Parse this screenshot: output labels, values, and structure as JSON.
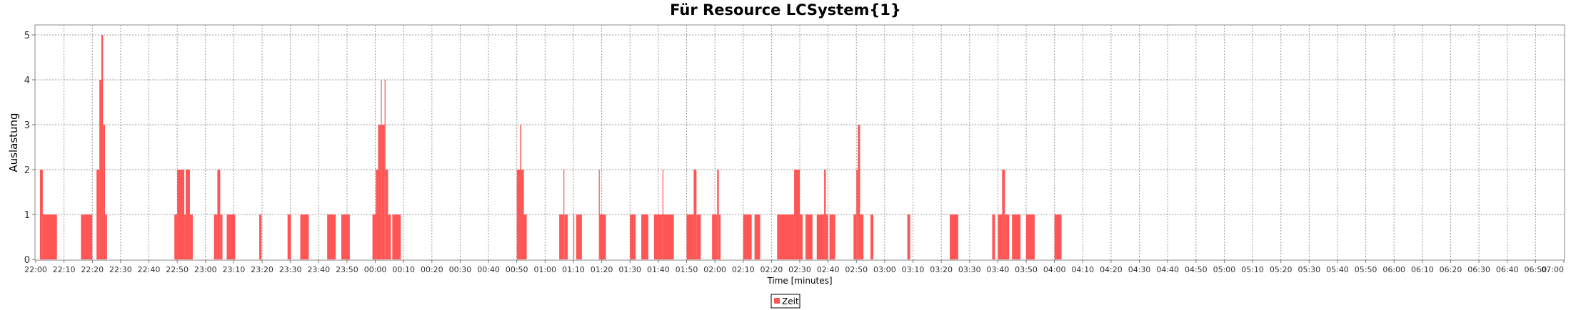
{
  "chart_data": {
    "type": "bar",
    "title": "Für Resource LCSystem{1}",
    "xlabel": "Time [minutes]",
    "ylabel": "Auslastung",
    "xlim_minutes": [
      0,
      540
    ],
    "ylim": [
      0,
      5.2
    ],
    "yticks": [
      0,
      1,
      2,
      3,
      4,
      5
    ],
    "xticks": [
      "22:00",
      "22:10",
      "22:20",
      "22:30",
      "22:40",
      "22:50",
      "23:00",
      "23:10",
      "23:20",
      "23:30",
      "23:40",
      "23:50",
      "00:00",
      "00:10",
      "00:20",
      "00:30",
      "00:40",
      "00:50",
      "01:00",
      "01:10",
      "01:20",
      "01:30",
      "01:40",
      "01:50",
      "02:00",
      "02:10",
      "02:20",
      "02:30",
      "02:40",
      "02:50",
      "03:00",
      "03:10",
      "03:20",
      "03:30",
      "03:40",
      "03:50",
      "04:00",
      "04:10",
      "04:20",
      "04:30",
      "04:40",
      "04:50",
      "05:00",
      "05:10",
      "05:20",
      "05:30",
      "05:40",
      "05:50",
      "06:00",
      "06:10",
      "06:20",
      "06:30",
      "06:40",
      "06:50",
      "07:00"
    ],
    "grid": true,
    "legend_position": "bottom",
    "series": [
      {
        "name": "Zeit",
        "color": "#ff5555",
        "bars": [
          {
            "start": 1.5,
            "end": 2.5,
            "value": 2
          },
          {
            "start": 2.5,
            "end": 7.5,
            "value": 1
          },
          {
            "start": 16,
            "end": 20,
            "value": 1
          },
          {
            "start": 21.5,
            "end": 22.5,
            "value": 2
          },
          {
            "start": 22.5,
            "end": 23.2,
            "value": 4
          },
          {
            "start": 23.2,
            "end": 23.8,
            "value": 5
          },
          {
            "start": 23.8,
            "end": 24.5,
            "value": 3
          },
          {
            "start": 24.5,
            "end": 25.2,
            "value": 1
          },
          {
            "start": 49,
            "end": 50,
            "value": 1
          },
          {
            "start": 50,
            "end": 52.5,
            "value": 2
          },
          {
            "start": 52.5,
            "end": 53,
            "value": 1
          },
          {
            "start": 53,
            "end": 54.5,
            "value": 2
          },
          {
            "start": 54.5,
            "end": 55.5,
            "value": 1
          },
          {
            "start": 63,
            "end": 64.2,
            "value": 1
          },
          {
            "start": 64.2,
            "end": 65.2,
            "value": 2
          },
          {
            "start": 65.2,
            "end": 66,
            "value": 1
          },
          {
            "start": 67.5,
            "end": 70.5,
            "value": 1
          },
          {
            "start": 79,
            "end": 79.8,
            "value": 1
          },
          {
            "start": 89,
            "end": 90.2,
            "value": 1
          },
          {
            "start": 93.5,
            "end": 96.5,
            "value": 1
          },
          {
            "start": 103,
            "end": 106,
            "value": 1
          },
          {
            "start": 108,
            "end": 111,
            "value": 1
          },
          {
            "start": 119,
            "end": 120.2,
            "value": 1
          },
          {
            "start": 120.2,
            "end": 121,
            "value": 2
          },
          {
            "start": 121,
            "end": 122,
            "value": 3
          },
          {
            "start": 122,
            "end": 122.3,
            "value": 4
          },
          {
            "start": 122.3,
            "end": 123.3,
            "value": 3
          },
          {
            "start": 123.3,
            "end": 123.6,
            "value": 4
          },
          {
            "start": 123.6,
            "end": 124.5,
            "value": 2
          },
          {
            "start": 124.5,
            "end": 125.5,
            "value": 1
          },
          {
            "start": 126,
            "end": 129,
            "value": 1
          },
          {
            "start": 170,
            "end": 171.2,
            "value": 2
          },
          {
            "start": 171.2,
            "end": 171.6,
            "value": 3
          },
          {
            "start": 171.6,
            "end": 172.5,
            "value": 2
          },
          {
            "start": 172.5,
            "end": 173.5,
            "value": 1
          },
          {
            "start": 185,
            "end": 186.5,
            "value": 1
          },
          {
            "start": 186.5,
            "end": 186.8,
            "value": 2
          },
          {
            "start": 186.8,
            "end": 188,
            "value": 1
          },
          {
            "start": 190,
            "end": 190.3,
            "value": 1
          },
          {
            "start": 191,
            "end": 193,
            "value": 1
          },
          {
            "start": 199,
            "end": 199.3,
            "value": 2
          },
          {
            "start": 199.3,
            "end": 201.5,
            "value": 1
          },
          {
            "start": 210,
            "end": 212,
            "value": 1
          },
          {
            "start": 214,
            "end": 216.5,
            "value": 1
          },
          {
            "start": 218.5,
            "end": 221.5,
            "value": 1
          },
          {
            "start": 221.5,
            "end": 221.8,
            "value": 2
          },
          {
            "start": 221.8,
            "end": 225.5,
            "value": 1
          },
          {
            "start": 230,
            "end": 232.5,
            "value": 1
          },
          {
            "start": 232.5,
            "end": 233.5,
            "value": 2
          },
          {
            "start": 233.5,
            "end": 235,
            "value": 1
          },
          {
            "start": 239,
            "end": 240.8,
            "value": 1
          },
          {
            "start": 240.8,
            "end": 241.4,
            "value": 2
          },
          {
            "start": 241.4,
            "end": 242,
            "value": 1
          },
          {
            "start": 250,
            "end": 253,
            "value": 1
          },
          {
            "start": 254,
            "end": 256,
            "value": 1
          },
          {
            "start": 262,
            "end": 268,
            "value": 1
          },
          {
            "start": 268,
            "end": 270,
            "value": 2
          },
          {
            "start": 270,
            "end": 271,
            "value": 1
          },
          {
            "start": 272,
            "end": 274.5,
            "value": 1
          },
          {
            "start": 276,
            "end": 278.6,
            "value": 1
          },
          {
            "start": 278.6,
            "end": 279.2,
            "value": 2
          },
          {
            "start": 279.2,
            "end": 280,
            "value": 1
          },
          {
            "start": 280.5,
            "end": 282.5,
            "value": 1
          },
          {
            "start": 289,
            "end": 290,
            "value": 1
          },
          {
            "start": 290,
            "end": 290.5,
            "value": 2
          },
          {
            "start": 290.5,
            "end": 291.3,
            "value": 3
          },
          {
            "start": 291.3,
            "end": 292.5,
            "value": 1
          },
          {
            "start": 295,
            "end": 296,
            "value": 1
          },
          {
            "start": 308,
            "end": 309,
            "value": 1
          },
          {
            "start": 323,
            "end": 326,
            "value": 1
          },
          {
            "start": 338,
            "end": 339,
            "value": 1
          },
          {
            "start": 340,
            "end": 341.5,
            "value": 1
          },
          {
            "start": 341.5,
            "end": 342.5,
            "value": 2
          },
          {
            "start": 342.5,
            "end": 344,
            "value": 1
          },
          {
            "start": 345,
            "end": 348,
            "value": 1
          },
          {
            "start": 350,
            "end": 353,
            "value": 1
          },
          {
            "start": 360,
            "end": 362.5,
            "value": 1
          }
        ]
      }
    ]
  }
}
